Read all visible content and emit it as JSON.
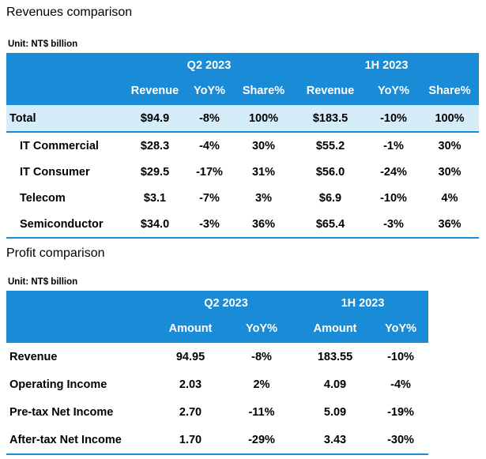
{
  "revenue": {
    "title": "Revenues comparison",
    "unit": "Unit: NT$ billion",
    "periods": [
      "Q2 2023",
      "1H 2023"
    ],
    "columns": [
      "Revenue",
      "YoY%",
      "Share%",
      "Revenue",
      "YoY%",
      "Share%"
    ],
    "rows": [
      {
        "label": "Total",
        "cells": [
          "$94.9",
          "-8%",
          "100%",
          "$183.5",
          "-10%",
          "100%"
        ]
      },
      {
        "label": "IT Commercial",
        "cells": [
          "$28.3",
          "-4%",
          "30%",
          "$55.2",
          "-1%",
          "30%"
        ]
      },
      {
        "label": "IT Consumer",
        "cells": [
          "$29.5",
          "-17%",
          "31%",
          "$56.0",
          "-24%",
          "30%"
        ]
      },
      {
        "label": "Telecom",
        "cells": [
          "$3.1",
          "-7%",
          "3%",
          "$6.9",
          "-10%",
          "4%"
        ]
      },
      {
        "label": "Semiconductor",
        "cells": [
          "$34.0",
          "-3%",
          "36%",
          "$65.4",
          "-3%",
          "36%"
        ]
      }
    ]
  },
  "profit": {
    "title": "Profit comparison",
    "unit": "Unit: NT$ billion",
    "periods": [
      "Q2 2023",
      "1H 2023"
    ],
    "columns": [
      "Amount",
      "YoY%",
      "Amount",
      "YoY%"
    ],
    "rows": [
      {
        "label": "Revenue",
        "cells": [
          "94.95",
          "-8%",
          "183.55",
          "-10%"
        ]
      },
      {
        "label": "Operating Income",
        "cells": [
          "2.03",
          "2%",
          "4.09",
          "-4%"
        ]
      },
      {
        "label": "Pre-tax Net Income",
        "cells": [
          "2.70",
          "-11%",
          "5.09",
          "-19%"
        ]
      },
      {
        "label": "After-tax Net Income",
        "cells": [
          "1.70",
          "-29%",
          "3.43",
          "-30%"
        ]
      }
    ]
  },
  "colors": {
    "header_blue": "#1a8bd6",
    "total_row": "#d5ecf9"
  }
}
